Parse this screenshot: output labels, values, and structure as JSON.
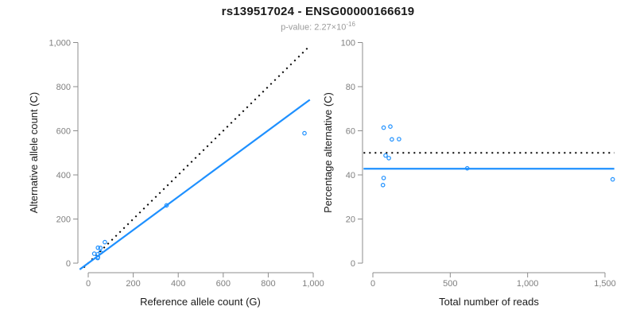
{
  "header": {
    "title": "rs139517024 - ENSG00000166619",
    "pvalue_prefix": "p-value: 2.27×10",
    "pvalue_exponent": "-16"
  },
  "colors": {
    "accent_blue": "#1e90ff",
    "dotted_line": "#000000",
    "axis_line": "#8c8c8c",
    "tick_label": "#7f7f7f",
    "axis_title": "#1a1a1a",
    "title": "#1a1a1a",
    "subtitle": "#9b9b9b"
  },
  "chart_data": [
    {
      "id": "allele-count-scatter",
      "type": "scatter",
      "xlabel": "Reference allele count (G)",
      "ylabel": "Alternative allele count (C)",
      "xlim": [
        0,
        1000
      ],
      "ylim": [
        0,
        1000
      ],
      "grid": false,
      "legend": false,
      "xticks": {
        "values": [
          0,
          200,
          400,
          600,
          800,
          1000
        ],
        "labels": [
          "0",
          "200",
          "400",
          "600",
          "800",
          "1,000"
        ]
      },
      "yticks": {
        "values": [
          0,
          200,
          400,
          600,
          800,
          1000
        ],
        "labels": [
          "0",
          "200",
          "400",
          "600",
          "800",
          "1,000"
        ]
      },
      "points": [
        [
          27,
          43
        ],
        [
          43,
          70
        ],
        [
          54,
          69
        ],
        [
          74,
          95
        ],
        [
          42,
          40
        ],
        [
          54,
          49
        ],
        [
          43,
          27
        ],
        [
          42,
          23
        ],
        [
          348,
          262
        ],
        [
          961,
          589
        ]
      ],
      "lines": [
        {
          "name": "identity-line",
          "slope": 1,
          "intercept": 0,
          "style": "dotted",
          "color_key": "dotted_line",
          "x_range": [
            -20,
            982
          ]
        },
        {
          "name": "fitted-line",
          "slope": 0.752,
          "intercept": 0,
          "style": "solid",
          "color_key": "accent_blue",
          "x_range": [
            -38,
            985
          ]
        }
      ]
    },
    {
      "id": "percentage-scatter",
      "type": "scatter",
      "xlabel": "Total number of reads",
      "ylabel": "Percentage alternative (C)",
      "xlim": [
        0,
        1500
      ],
      "ylim": [
        0,
        100
      ],
      "grid": false,
      "legend": false,
      "xticks": {
        "values": [
          0,
          500,
          1000,
          1500
        ],
        "labels": [
          "0",
          "500",
          "1,000",
          "1,500"
        ]
      },
      "yticks": {
        "values": [
          0,
          20,
          40,
          60,
          80,
          100
        ],
        "labels": [
          "0",
          "20",
          "40",
          "60",
          "80",
          "100"
        ]
      },
      "points": [
        [
          70,
          61.4
        ],
        [
          113,
          61.9
        ],
        [
          123,
          56.1
        ],
        [
          169,
          56.2
        ],
        [
          82,
          48.8
        ],
        [
          103,
          47.6
        ],
        [
          70,
          38.6
        ],
        [
          65,
          35.4
        ],
        [
          610,
          43
        ],
        [
          1550,
          38
        ]
      ],
      "lines": [
        {
          "name": "expected-50pct-line",
          "slope": 0,
          "intercept": 50,
          "style": "dotted",
          "color_key": "dotted_line",
          "x_range": [
            -60,
            1560
          ]
        },
        {
          "name": "fitted-line",
          "slope": 0,
          "intercept": 42.8,
          "style": "solid",
          "color_key": "accent_blue",
          "x_range": [
            -60,
            1560
          ]
        }
      ]
    }
  ]
}
